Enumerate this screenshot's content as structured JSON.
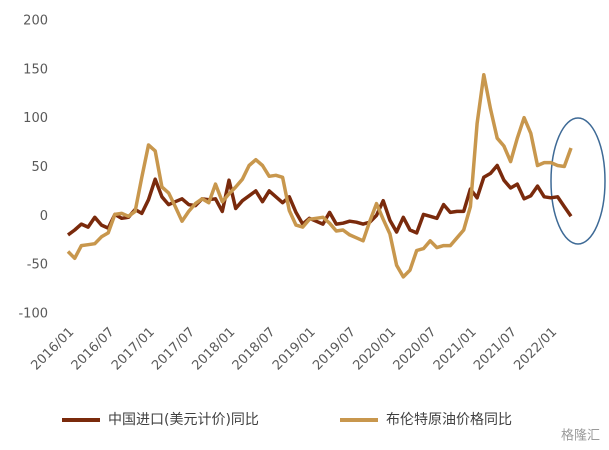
{
  "chart_data": {
    "type": "line",
    "categories": [
      "2016/01",
      null,
      null,
      null,
      null,
      null,
      "2016/07",
      null,
      null,
      null,
      null,
      null,
      "2017/01",
      null,
      null,
      null,
      null,
      null,
      "2017/07",
      null,
      null,
      null,
      null,
      null,
      "2018/01",
      null,
      null,
      null,
      null,
      null,
      "2018/07",
      null,
      null,
      null,
      null,
      null,
      "2019/01",
      null,
      null,
      null,
      null,
      null,
      "2019/07",
      null,
      null,
      null,
      null,
      null,
      "2020/01",
      null,
      null,
      null,
      null,
      null,
      "2020/07",
      null,
      null,
      null,
      null,
      null,
      "2021/01",
      null,
      null,
      null,
      null,
      null,
      "2021/07",
      null,
      null,
      null,
      null,
      null,
      "2022/01",
      null,
      null,
      null
    ],
    "series": [
      {
        "name": "中国进口(美元计价)同比",
        "color": "#7a2a0c",
        "values": [
          -19,
          -14,
          -8,
          -11,
          -1,
          -9,
          -12,
          2,
          -2,
          -1,
          7,
          3,
          17,
          38,
          20,
          12,
          15,
          18,
          12,
          11,
          18,
          17,
          18,
          5,
          37,
          8,
          16,
          21,
          26,
          15,
          26,
          20,
          14,
          20,
          4,
          -8,
          -2,
          -5,
          -8,
          4,
          -8,
          -7,
          -5,
          -6,
          -8,
          -6,
          1,
          16,
          -4,
          -16,
          -1,
          -14,
          -17,
          2,
          0,
          -2,
          12,
          4,
          5,
          5,
          28,
          19,
          40,
          44,
          52,
          37,
          29,
          33,
          18,
          21,
          31,
          20,
          19,
          20,
          10,
          0
        ]
      },
      {
        "name": "布伦特原油价格同比",
        "color": "#c8974d",
        "values": [
          -36,
          -43,
          -30,
          -29,
          -28,
          -21,
          -17,
          2,
          3,
          0,
          5,
          40,
          73,
          67,
          30,
          24,
          10,
          -5,
          5,
          13,
          18,
          14,
          33,
          15,
          23,
          30,
          38,
          52,
          58,
          52,
          41,
          42,
          40,
          6,
          -9,
          -11,
          -3,
          -2,
          -1,
          -7,
          -15,
          -14,
          -19,
          -22,
          -25,
          -5,
          13,
          -3,
          -18,
          -50,
          -62,
          -55,
          -35,
          -33,
          -25,
          -32,
          -30,
          -30,
          -22,
          -14,
          10,
          95,
          145,
          110,
          80,
          72,
          56,
          80,
          101,
          85,
          52,
          55,
          55,
          52,
          51,
          70
        ]
      }
    ],
    "ylim": [
      -100,
      200
    ],
    "yticks": [
      -100,
      -50,
      0,
      50,
      100,
      150,
      200
    ],
    "grid": false,
    "legend": "bottom",
    "watermark": "格隆汇"
  }
}
